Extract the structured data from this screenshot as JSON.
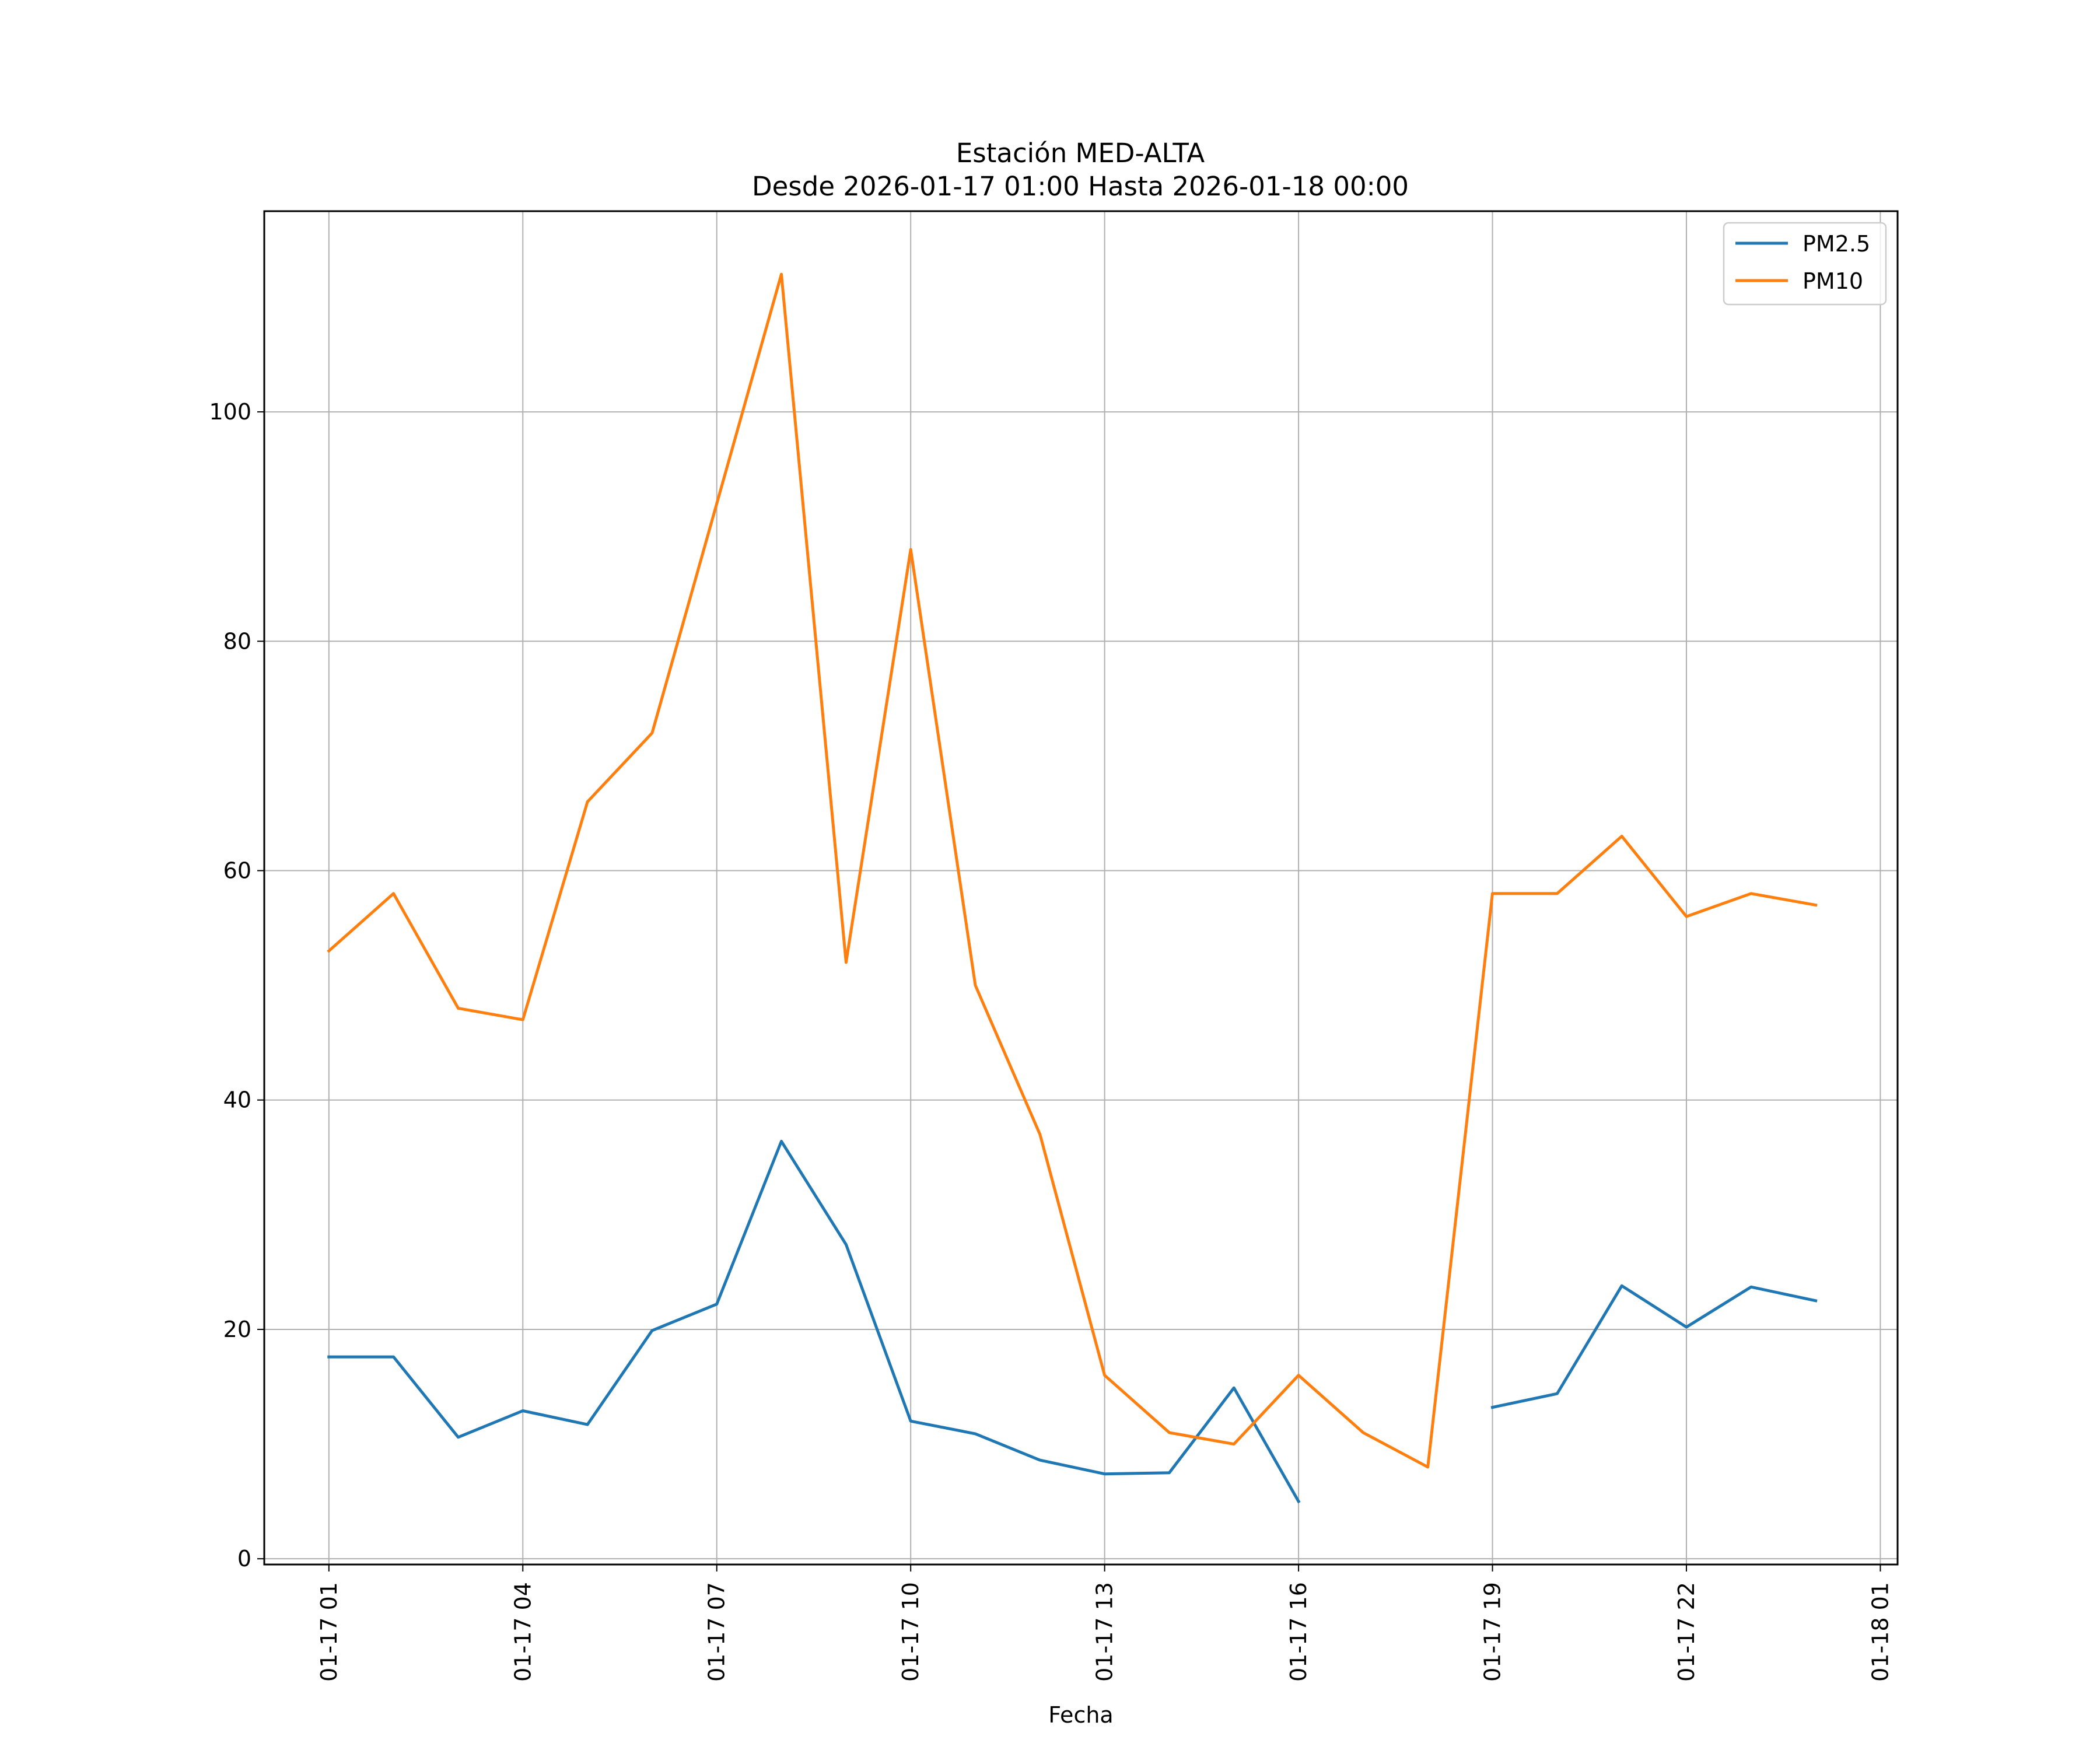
{
  "chart_data": {
    "type": "line",
    "title_line1": "Estación MED-ALTA",
    "title_line2": "Desde 2026-01-17 01:00 Hasta 2026-01-18 00:00",
    "xlabel": "Fecha",
    "ylabel": "",
    "x_range": [
      "2026-01-17 00:00",
      "2026-01-18 01:16"
    ],
    "ylim": [
      -0.5,
      117.5
    ],
    "grid": true,
    "legend_position": "top-right",
    "x_ticks": [
      {
        "t": "2026-01-17 01:00",
        "label": "01-17 01"
      },
      {
        "t": "2026-01-17 04:00",
        "label": "01-17 04"
      },
      {
        "t": "2026-01-17 07:00",
        "label": "01-17 07"
      },
      {
        "t": "2026-01-17 10:00",
        "label": "01-17 10"
      },
      {
        "t": "2026-01-17 13:00",
        "label": "01-17 13"
      },
      {
        "t": "2026-01-17 16:00",
        "label": "01-17 16"
      },
      {
        "t": "2026-01-17 19:00",
        "label": "01-17 19"
      },
      {
        "t": "2026-01-17 22:00",
        "label": "01-17 22"
      },
      {
        "t": "2026-01-18 01:00",
        "label": "01-18 01"
      }
    ],
    "y_ticks": [
      {
        "v": 0,
        "label": "0"
      },
      {
        "v": 20,
        "label": "20"
      },
      {
        "v": 40,
        "label": "40"
      },
      {
        "v": 60,
        "label": "60"
      },
      {
        "v": 80,
        "label": "80"
      },
      {
        "v": 100,
        "label": "100"
      }
    ],
    "x": [
      "2026-01-17 01:00",
      "2026-01-17 02:00",
      "2026-01-17 03:00",
      "2026-01-17 04:00",
      "2026-01-17 05:00",
      "2026-01-17 06:00",
      "2026-01-17 07:00",
      "2026-01-17 08:00",
      "2026-01-17 09:00",
      "2026-01-17 10:00",
      "2026-01-17 11:00",
      "2026-01-17 12:00",
      "2026-01-17 13:00",
      "2026-01-17 14:00",
      "2026-01-17 15:00",
      "2026-01-17 16:00",
      "2026-01-17 17:00",
      "2026-01-17 18:00",
      "2026-01-17 19:00",
      "2026-01-17 20:00",
      "2026-01-17 21:00",
      "2026-01-17 22:00",
      "2026-01-17 23:00",
      "2026-01-18 00:00"
    ],
    "series": [
      {
        "name": "PM2.5",
        "color": "#1f77b4",
        "values": [
          17.6,
          17.6,
          10.6,
          12.9,
          11.7,
          19.9,
          22.2,
          36.4,
          27.4,
          12.0,
          10.9,
          8.6,
          7.4,
          7.5,
          14.9,
          5.0,
          null,
          null,
          13.2,
          14.4,
          23.8,
          20.2,
          23.7,
          22.5
        ]
      },
      {
        "name": "PM10",
        "color": "#ff7f0e",
        "values": [
          53,
          58,
          48,
          47,
          66,
          72,
          92,
          112,
          52,
          88,
          50,
          37,
          16,
          11,
          10,
          16,
          11,
          8,
          58,
          58,
          63,
          56,
          58,
          57
        ]
      }
    ]
  }
}
